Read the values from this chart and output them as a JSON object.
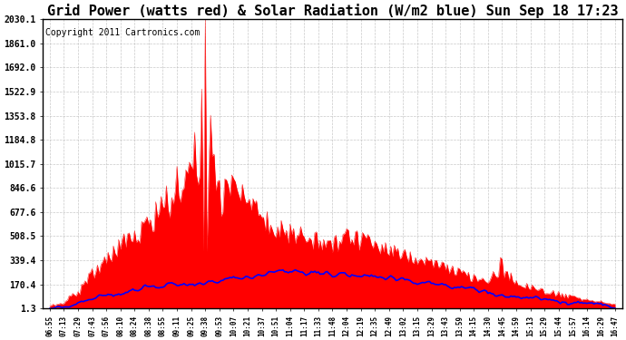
{
  "title": "Grid Power (watts red) & Solar Radiation (W/m2 blue) Sun Sep 18 17:23",
  "copyright": "Copyright 2011 Cartronics.com",
  "yticks": [
    1.3,
    170.4,
    339.4,
    508.5,
    677.6,
    846.6,
    1015.7,
    1184.8,
    1353.8,
    1522.9,
    1692.0,
    1861.0,
    2030.1
  ],
  "ylim": [
    1.3,
    2030.1
  ],
  "xtick_labels": [
    "06:55",
    "07:13",
    "07:29",
    "07:43",
    "07:56",
    "08:10",
    "08:24",
    "08:38",
    "08:55",
    "09:11",
    "09:25",
    "09:38",
    "09:53",
    "10:07",
    "10:21",
    "10:37",
    "10:51",
    "11:04",
    "11:17",
    "11:33",
    "11:48",
    "12:04",
    "12:19",
    "12:35",
    "12:49",
    "13:02",
    "13:15",
    "13:29",
    "13:43",
    "13:59",
    "14:15",
    "14:30",
    "14:45",
    "14:59",
    "15:13",
    "15:29",
    "15:44",
    "15:57",
    "16:14",
    "16:29",
    "16:47"
  ],
  "n_xticks": 41,
  "bg_color": "#ffffff",
  "grid_color": "#bbbbbb",
  "red_color": "#ff0000",
  "blue_color": "#0000ff",
  "title_fontsize": 11,
  "copyright_fontsize": 7
}
